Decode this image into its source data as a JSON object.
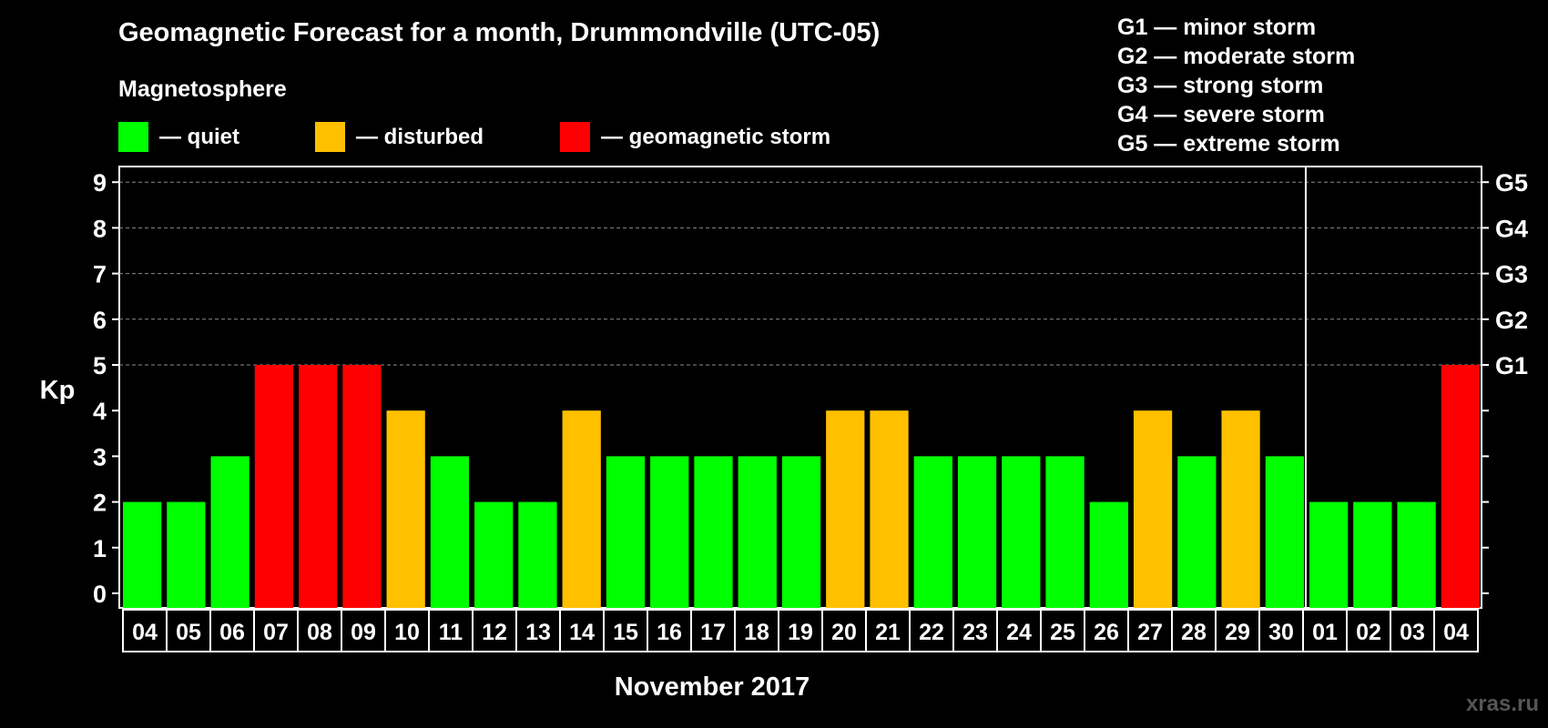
{
  "header": {
    "title": "Geomagnetic Forecast for a month, Drummondville (UTC-05)",
    "subtitle": "Magnetosphere"
  },
  "legend": [
    {
      "label": "— quiet",
      "color": "#00ff00"
    },
    {
      "label": "— disturbed",
      "color": "#ffc000"
    },
    {
      "label": "— geomagnetic storm",
      "color": "#ff0000"
    }
  ],
  "storm_scale": [
    "G1 — minor storm",
    "G2 — moderate storm",
    "G3 — strong storm",
    "G4 — severe storm",
    "G5 — extreme storm"
  ],
  "watermark": "xras.ru",
  "colors": {
    "quiet": "#00ff00",
    "disturbed": "#ffc000",
    "storm": "#ff0000"
  },
  "chart_data": {
    "type": "bar",
    "title": "Geomagnetic Forecast for a month, Drummondville (UTC-05)",
    "xlabel": "November 2017",
    "ylabel": "Kp",
    "ylim": [
      0,
      9
    ],
    "yticks": [
      0,
      1,
      2,
      3,
      4,
      5,
      6,
      7,
      8,
      9
    ],
    "right_ticks": [
      {
        "value": 5,
        "label": "G1"
      },
      {
        "value": 6,
        "label": "G2"
      },
      {
        "value": 7,
        "label": "G3"
      },
      {
        "value": 8,
        "label": "G4"
      },
      {
        "value": 9,
        "label": "G5"
      }
    ],
    "gridlines": [
      5,
      6,
      7,
      8,
      9
    ],
    "month_divider_after_index": 26,
    "categories": [
      "04",
      "05",
      "06",
      "07",
      "08",
      "09",
      "10",
      "11",
      "12",
      "13",
      "14",
      "15",
      "16",
      "17",
      "18",
      "19",
      "20",
      "21",
      "22",
      "23",
      "24",
      "25",
      "26",
      "27",
      "28",
      "29",
      "30",
      "01",
      "02",
      "03",
      "04"
    ],
    "values": [
      2,
      2,
      3,
      5,
      5,
      5,
      4,
      3,
      2,
      2,
      4,
      3,
      3,
      3,
      3,
      3,
      4,
      4,
      3,
      3,
      3,
      3,
      2,
      4,
      3,
      4,
      3,
      2,
      2,
      2,
      5
    ],
    "status": [
      "quiet",
      "quiet",
      "quiet",
      "storm",
      "storm",
      "storm",
      "disturbed",
      "quiet",
      "quiet",
      "quiet",
      "disturbed",
      "quiet",
      "quiet",
      "quiet",
      "quiet",
      "quiet",
      "disturbed",
      "disturbed",
      "quiet",
      "quiet",
      "quiet",
      "quiet",
      "quiet",
      "disturbed",
      "quiet",
      "disturbed",
      "quiet",
      "quiet",
      "quiet",
      "quiet",
      "storm"
    ]
  }
}
